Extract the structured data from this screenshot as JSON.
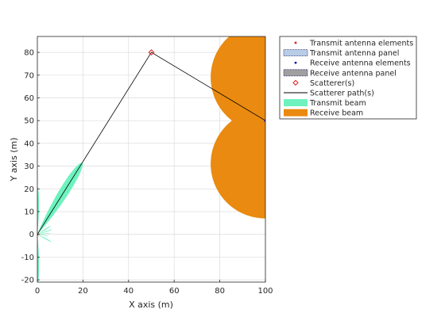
{
  "chart_data": {
    "type": "scatter",
    "title": "",
    "xlabel": "X axis (m)",
    "ylabel": "Y axis (m)",
    "xlim": [
      0,
      100
    ],
    "ylim": [
      -21,
      87
    ],
    "xticks": [
      0,
      20,
      40,
      60,
      80,
      100
    ],
    "yticks": [
      -20,
      -10,
      0,
      10,
      20,
      30,
      40,
      50,
      60,
      70,
      80
    ],
    "grid": true,
    "legend_position": "outside-right",
    "colors": {
      "transmit_beam": "#6ef2be",
      "receive_beam": "#ea8a10",
      "scatter_path": "#000000",
      "scatterer": "#e02020",
      "transmit_elements": "#e02020",
      "receive_elements": "#1a1aa8",
      "grid": "#dcdcdc"
    },
    "transmit_array": {
      "x": 0,
      "y": 0
    },
    "receive_array": {
      "x": 100,
      "y": 50
    },
    "scatterers": [
      {
        "x": 50,
        "y": 80
      }
    ],
    "scatter_paths": [
      {
        "x": [
          0,
          50,
          100
        ],
        "y": [
          0,
          80,
          50
        ]
      }
    ],
    "transmit_beam": {
      "origin": [
        0,
        0
      ],
      "lobes": [
        {
          "direction_deg": 58,
          "length_m": 37,
          "half_width_deg": 10
        },
        {
          "direction_deg": 270,
          "length_m": 22,
          "half_width_deg": 6
        },
        {
          "direction_deg": 90,
          "length_m": 21,
          "half_width_deg": 6
        },
        {
          "direction_deg": 32,
          "length_m": 7,
          "half_width_deg": 5
        },
        {
          "direction_deg": 18,
          "length_m": 7,
          "half_width_deg": 4
        },
        {
          "direction_deg": 5,
          "length_m": 6,
          "half_width_deg": 3
        },
        {
          "direction_deg": -8,
          "length_m": 5,
          "half_width_deg": 3
        },
        {
          "direction_deg": -28,
          "length_m": 7,
          "half_width_deg": 5
        }
      ]
    },
    "receive_beam": {
      "origin": [
        100,
        50
      ],
      "lobes": [
        {
          "direction_deg": 180,
          "center": [
            100,
            69
          ],
          "radius_m": 24
        },
        {
          "direction_deg": 180,
          "center": [
            100,
            31
          ],
          "radius_m": 24
        }
      ]
    },
    "legend": [
      {
        "label": "Transmit antenna elements",
        "symbol": "dot",
        "color": "#e02020"
      },
      {
        "label": "Transmit antenna panel",
        "symbol": "panel",
        "color": "#b8cde6"
      },
      {
        "label": "Receive antenna elements",
        "symbol": "dot",
        "color": "#1a1aa8"
      },
      {
        "label": "Receive antenna panel",
        "symbol": "panel",
        "color": "#a0a0a0"
      },
      {
        "label": "Scatterer(s)",
        "symbol": "diamond",
        "color": "#e02020"
      },
      {
        "label": "Scatterer path(s)",
        "symbol": "line",
        "color": "#000000"
      },
      {
        "label": "Transmit beam",
        "symbol": "patch",
        "color": "#6ef2be"
      },
      {
        "label": "Receive beam",
        "symbol": "patch",
        "color": "#ea8a10"
      }
    ]
  }
}
